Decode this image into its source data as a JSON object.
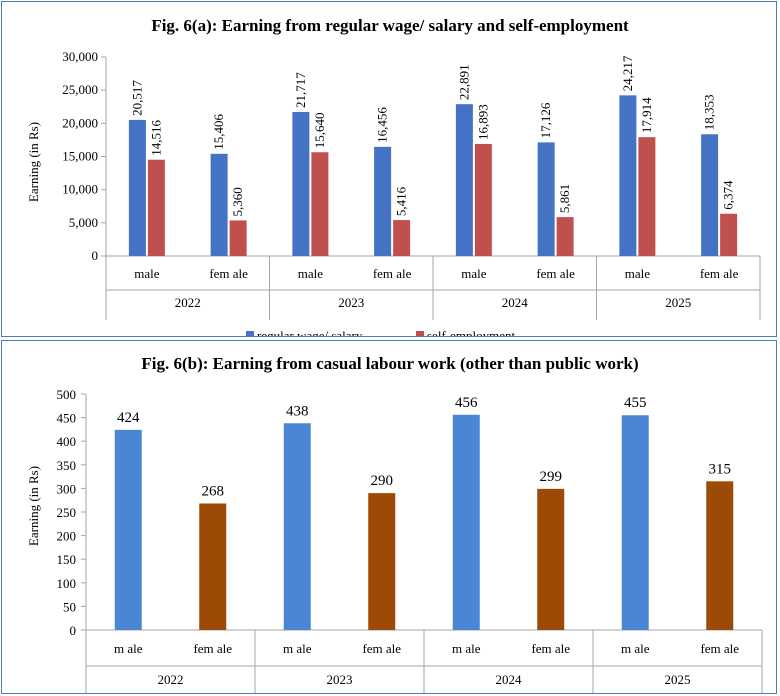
{
  "chart_data": [
    {
      "type": "bar",
      "title": "Fig. 6(a): Earning  from  regular wage/ salary and self-employment",
      "ylabel": "Earning (in Rs)",
      "xlabel": "",
      "ylim": [
        0,
        30000
      ],
      "yticks": [
        "0",
        "5,000",
        "10,000",
        "15,000",
        "20,000",
        "25,000",
        "30,000"
      ],
      "ytick_values": [
        0,
        5000,
        10000,
        15000,
        20000,
        25000,
        30000
      ],
      "groups": [
        "2022",
        "2023",
        "2024",
        "2025"
      ],
      "categories": [
        "male",
        "female"
      ],
      "category_labels": [
        "male",
        "fem ale"
      ],
      "series": [
        {
          "name": "regular wage/ salary",
          "color": "#4472c4",
          "values": [
            [
              20517,
              15406
            ],
            [
              21717,
              16456
            ],
            [
              22891,
              17126
            ],
            [
              24217,
              18353
            ]
          ],
          "labels": [
            [
              "20,517",
              "15,406"
            ],
            [
              "21,717",
              "16,456"
            ],
            [
              "22,891",
              "17,126"
            ],
            [
              "24,217",
              "18,353"
            ]
          ]
        },
        {
          "name": "self-employment",
          "color": "#c0504d",
          "values": [
            [
              14516,
              5360
            ],
            [
              15640,
              5416
            ],
            [
              16893,
              5861
            ],
            [
              17914,
              6374
            ]
          ],
          "labels": [
            [
              "14,516",
              "5,360"
            ],
            [
              "15,640",
              "5,416"
            ],
            [
              "16,893",
              "5,861"
            ],
            [
              "17,914",
              "6,374"
            ]
          ]
        }
      ],
      "legend": "bottom",
      "grid": false
    },
    {
      "type": "bar",
      "title": "Fig. 6(b): Earning  from  casual labour  work  (other than  public  work)",
      "ylabel": "Earning (in Rs)",
      "xlabel": "",
      "ylim": [
        0,
        500
      ],
      "yticks": [
        "0",
        "50",
        "100",
        "150",
        "200",
        "250",
        "300",
        "350",
        "400",
        "450",
        "500"
      ],
      "ytick_values": [
        0,
        50,
        100,
        150,
        200,
        250,
        300,
        350,
        400,
        450,
        500
      ],
      "groups": [
        "2022",
        "2023",
        "2024",
        "2025"
      ],
      "categories": [
        "male",
        "female"
      ],
      "category_labels": [
        "m ale",
        "fem ale"
      ],
      "series": [
        {
          "name": "male",
          "color_male": "#4a86d4",
          "color_female": "#9c4a06",
          "values": [
            [
              424,
              268
            ],
            [
              438,
              290
            ],
            [
              456,
              299
            ],
            [
              455,
              315
            ]
          ],
          "labels": [
            [
              "424",
              "268"
            ],
            [
              "438",
              "290"
            ],
            [
              "456",
              "299"
            ],
            [
              "455",
              "315"
            ]
          ]
        }
      ],
      "grid": false
    }
  ]
}
